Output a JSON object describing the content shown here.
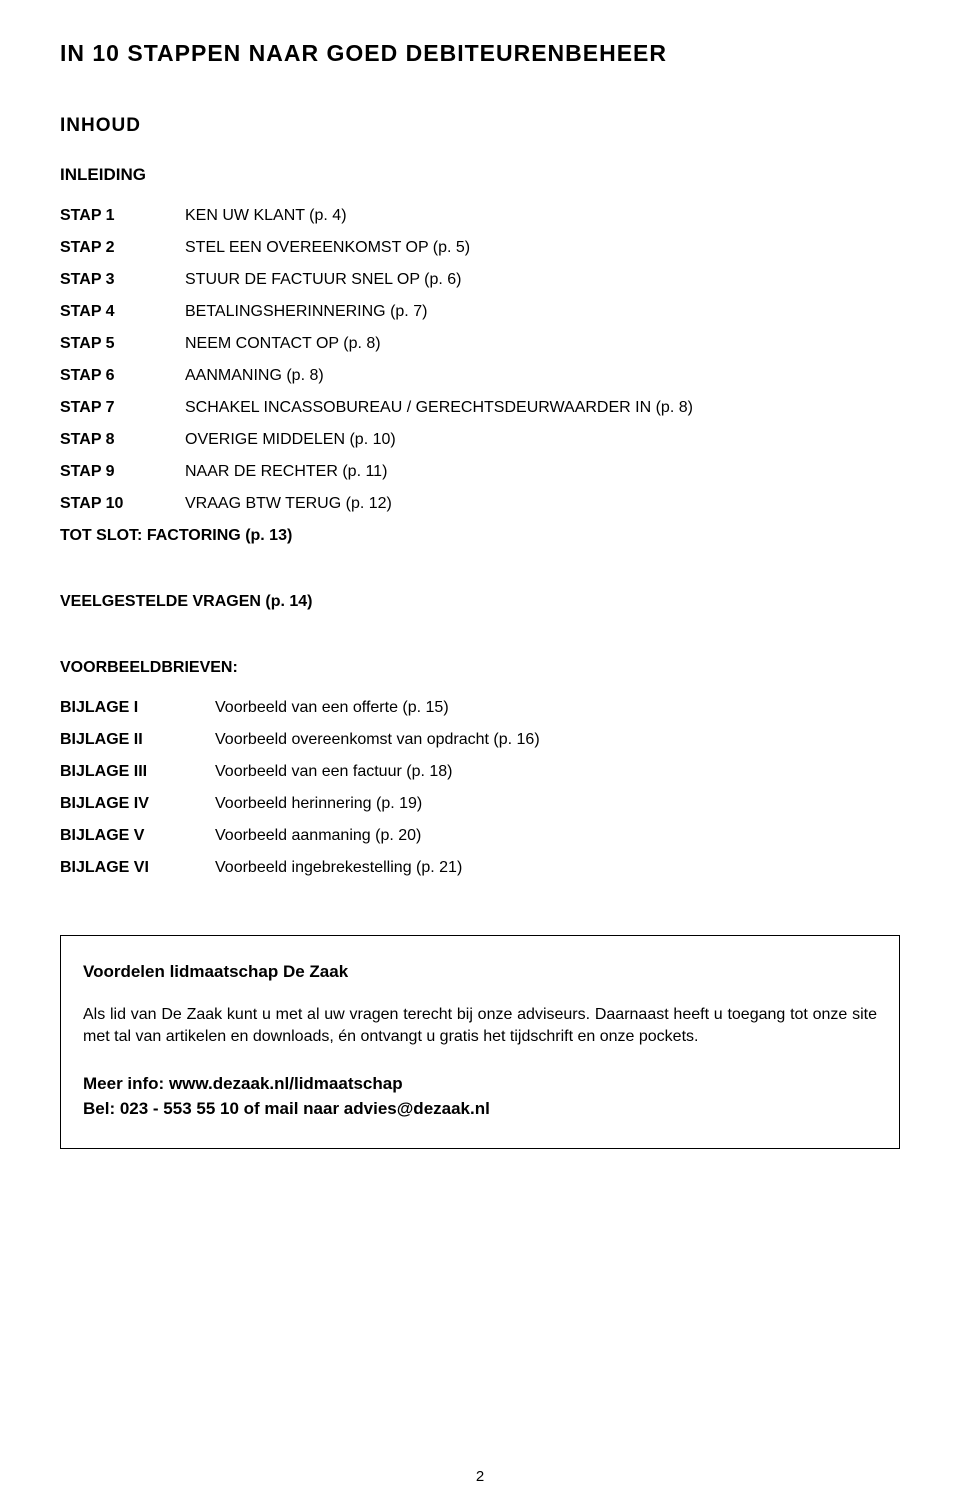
{
  "title": "IN 10 STAPPEN NAAR GOED DEBITEURENBEHEER",
  "toc_heading": "INHOUD",
  "intro_label": "INLEIDING",
  "steps": [
    {
      "label": "STAP 1",
      "desc": "KEN UW KLANT (p. 4)"
    },
    {
      "label": "STAP 2",
      "desc": "STEL EEN  OVEREENKOMST OP (p. 5)"
    },
    {
      "label": "STAP 3",
      "desc": "STUUR DE FACTUUR SNEL OP (p. 6)"
    },
    {
      "label": "STAP 4",
      "desc": "BETALINGSHERINNERING (p. 7)"
    },
    {
      "label": "STAP 5",
      "desc": "NEEM CONTACT OP (p. 8)"
    },
    {
      "label": "STAP 6",
      "desc": "AANMANING (p. 8)"
    },
    {
      "label": "STAP 7",
      "desc": "SCHAKEL INCASSOBUREAU / GERECHTSDEURWAARDER IN (p. 8)"
    },
    {
      "label": "STAP 8",
      "desc": "OVERIGE MIDDELEN (p. 10)"
    },
    {
      "label": "STAP 9",
      "desc": "NAAR DE RECHTER (p. 11)"
    },
    {
      "label": "STAP 10",
      "desc": "VRAAG BTW TERUG (p. 12)"
    }
  ],
  "closing": "TOT SLOT: FACTORING (p. 13)",
  "faq": "VEELGESTELDE VRAGEN (p. 14)",
  "letters_heading": "VOORBEELDBRIEVEN:",
  "bijlagen": [
    {
      "label": "BIJLAGE I",
      "desc": "Voorbeeld van een offerte (p. 15)"
    },
    {
      "label": "BIJLAGE II",
      "desc": "Voorbeeld overeenkomst van opdracht (p. 16)"
    },
    {
      "label": "BIJLAGE III",
      "desc": "Voorbeeld van een factuur (p. 18)"
    },
    {
      "label": "BIJLAGE IV",
      "desc": "Voorbeeld herinnering (p. 19)"
    },
    {
      "label": "BIJLAGE V",
      "desc": "Voorbeeld aanmaning (p. 20)"
    },
    {
      "label": "BIJLAGE VI",
      "desc": "Voorbeeld ingebrekestelling (p. 21)"
    }
  ],
  "box": {
    "title": "Voordelen lidmaatschap De Zaak",
    "body": "Als lid van De Zaak kunt u met al uw vragen terecht bij onze adviseurs. Daarnaast heeft u toegang tot onze site met tal van artikelen en downloads, én ontvangt u gratis het tijdschrift en onze pockets.",
    "info1": "Meer info: www.dezaak.nl/lidmaatschap",
    "info2": "Bel: 023 - 553 55 10 of mail naar advies@dezaak.nl"
  },
  "page_number": "2"
}
